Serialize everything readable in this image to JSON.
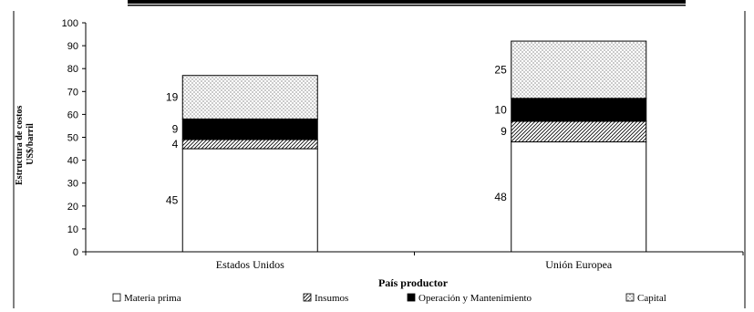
{
  "chart_data": {
    "type": "bar",
    "stacked": true,
    "categories": [
      "Estados Unidos",
      "Unión Europea"
    ],
    "series": [
      {
        "name": "Materia prima",
        "values": [
          45,
          48
        ],
        "pattern": "white"
      },
      {
        "name": "Insumos",
        "values": [
          4,
          9
        ],
        "pattern": "diagonal-hatch"
      },
      {
        "name": "Operación y Mantenimiento",
        "values": [
          9,
          10
        ],
        "pattern": "solid-black"
      },
      {
        "name": "Capital",
        "values": [
          19,
          25
        ],
        "pattern": "dotted"
      }
    ],
    "xlabel": "País productor",
    "ylabel_lines": [
      "Estructura de costos",
      "US$/barril"
    ],
    "ylim": [
      0,
      100
    ],
    "yticks": [
      0,
      10,
      20,
      30,
      40,
      50,
      60,
      70,
      80,
      90,
      100
    ],
    "grid": false,
    "legend_position": "bottom"
  }
}
